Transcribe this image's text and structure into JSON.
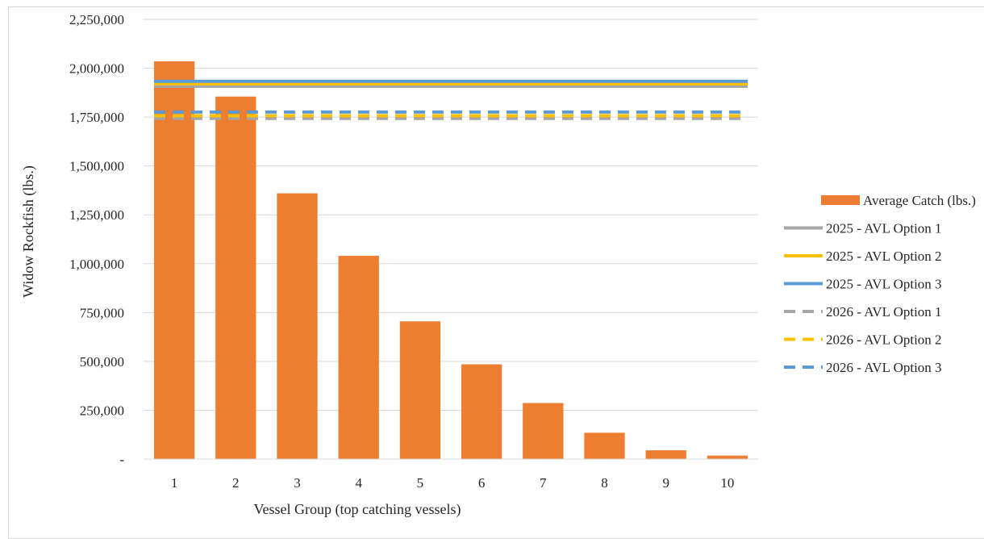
{
  "chart_data": {
    "type": "bar",
    "xlabel": "Vessel Group (top catching vessels)",
    "ylabel": "Widow Rockfish (lbs.)",
    "ylim": [
      0,
      2250000
    ],
    "yticks": [
      {
        "value": 0,
        "label": "-"
      },
      {
        "value": 250000,
        "label": "250,000"
      },
      {
        "value": 500000,
        "label": "500,000"
      },
      {
        "value": 750000,
        "label": "750,000"
      },
      {
        "value": 1000000,
        "label": "1,000,000"
      },
      {
        "value": 1250000,
        "label": "1,250,000"
      },
      {
        "value": 1500000,
        "label": "1,500,000"
      },
      {
        "value": 1750000,
        "label": "1,750,000"
      },
      {
        "value": 2000000,
        "label": "2,000,000"
      },
      {
        "value": 2250000,
        "label": "2,250,000"
      }
    ],
    "categories": [
      "1",
      "2",
      "3",
      "4",
      "5",
      "6",
      "7",
      "8",
      "9",
      "10"
    ],
    "bar_series": {
      "name": "Average Catch (lbs.)",
      "color": "#ed7d31",
      "values": [
        2035000,
        1855000,
        1360000,
        1040000,
        705000,
        485000,
        287000,
        135000,
        45000,
        18000
      ]
    },
    "line_series": [
      {
        "name": "2025 - AVL Option 1",
        "value": 1908000,
        "color": "#a5a5a5",
        "dashed": false
      },
      {
        "name": "2025 - AVL Option 2",
        "value": 1920000,
        "color": "#ffc000",
        "dashed": false
      },
      {
        "name": "2025 - AVL Option 3",
        "value": 1933000,
        "color": "#5b9bd5",
        "dashed": false
      },
      {
        "name": "2026 - AVL Option 1",
        "value": 1743000,
        "color": "#a5a5a5",
        "dashed": true
      },
      {
        "name": "2026 - AVL Option 2",
        "value": 1757000,
        "color": "#ffc000",
        "dashed": true
      },
      {
        "name": "2026 - AVL Option 3",
        "value": 1776000,
        "color": "#5b9bd5",
        "dashed": true
      }
    ],
    "grid": true,
    "legend_position": "right"
  }
}
